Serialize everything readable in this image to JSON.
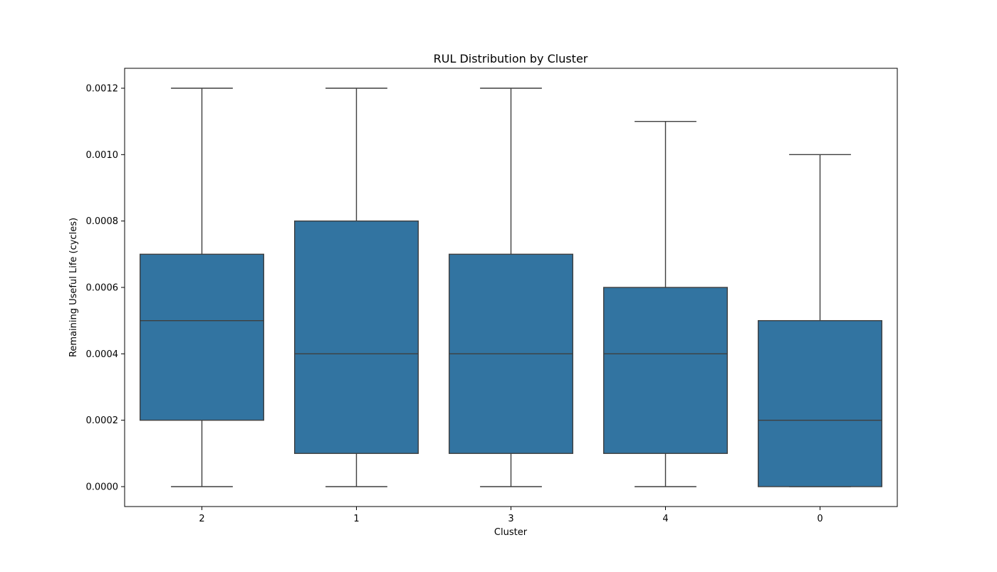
{
  "chart_data": {
    "type": "box",
    "title": "RUL Distribution by Cluster",
    "xlabel": "Cluster",
    "ylabel": "Remaining Useful Life (cycles)",
    "categories": [
      "2",
      "1",
      "3",
      "4",
      "0"
    ],
    "boxes": [
      {
        "category": "2",
        "whisker_low": 0.0,
        "q1": 0.0002,
        "median": 0.0005,
        "q3": 0.0007,
        "whisker_high": 0.0012
      },
      {
        "category": "1",
        "whisker_low": 0.0,
        "q1": 0.0001,
        "median": 0.0004,
        "q3": 0.0008,
        "whisker_high": 0.0012
      },
      {
        "category": "3",
        "whisker_low": 0.0,
        "q1": 0.0001,
        "median": 0.0004,
        "q3": 0.0007,
        "whisker_high": 0.0012
      },
      {
        "category": "4",
        "whisker_low": 0.0,
        "q1": 0.0001,
        "median": 0.0004,
        "q3": 0.0006,
        "whisker_high": 0.0011
      },
      {
        "category": "0",
        "whisker_low": 0.0,
        "q1": 0.0,
        "median": 0.0002,
        "q3": 0.0005,
        "whisker_high": 0.001
      }
    ],
    "yticks": [
      0.0,
      0.0002,
      0.0004,
      0.0006,
      0.0008,
      0.001,
      0.0012
    ],
    "ytick_labels": [
      "0.0000",
      "0.0002",
      "0.0004",
      "0.0006",
      "0.0008",
      "0.0010",
      "0.0012"
    ],
    "ylim": [
      -6e-05,
      0.00126
    ],
    "grid": false,
    "legend": "none",
    "colors": {
      "box_fill": "#3274a1",
      "box_edge": "#3f3f3f",
      "axis": "#000000"
    }
  }
}
